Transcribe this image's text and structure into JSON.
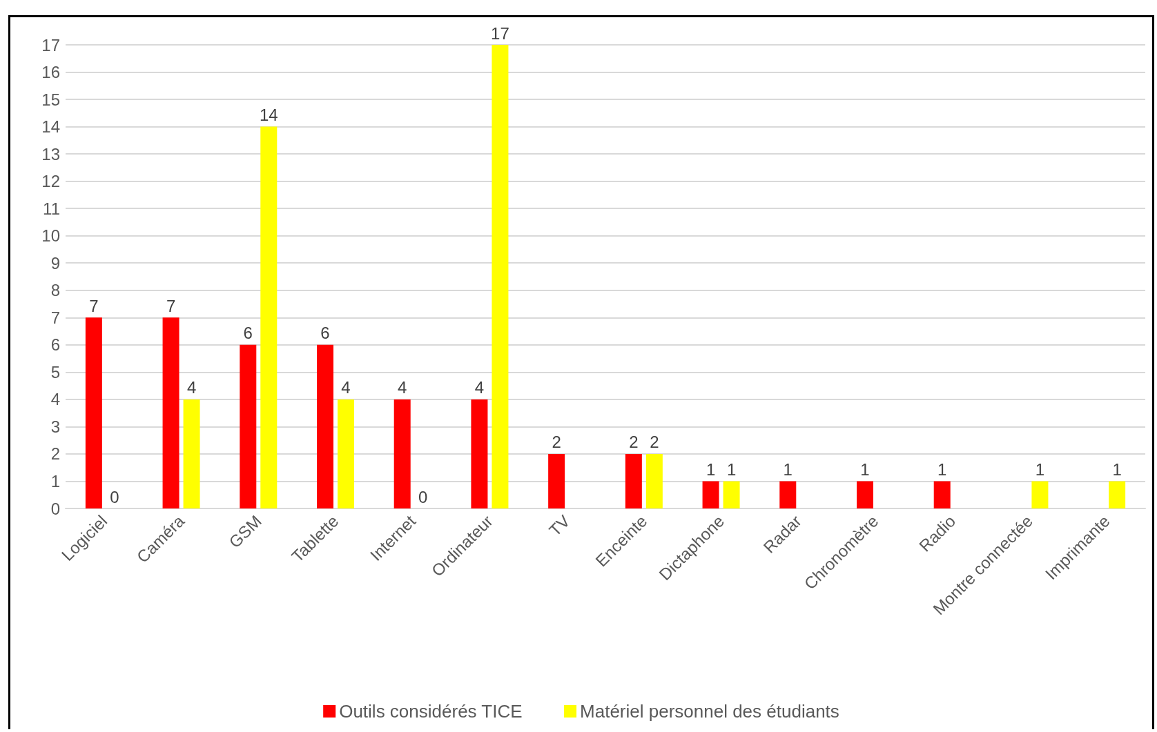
{
  "chart_data": {
    "type": "bar",
    "categories": [
      "Logiciel",
      "Caméra",
      "GSM",
      "Tablette",
      "Internet",
      "Ordinateur",
      "TV",
      "Enceinte",
      "Dictaphone",
      "Radar",
      "Chronomètre",
      "Radio",
      "Montre connectée",
      "Imprimante"
    ],
    "series": [
      {
        "name": "Outils considérés TICE",
        "color": "#ff0000",
        "values": [
          7,
          7,
          6,
          6,
          4,
          4,
          2,
          2,
          1,
          1,
          1,
          1,
          null,
          null
        ]
      },
      {
        "name": "Matériel personnel des étudiants",
        "color": "#ffff00",
        "values": [
          0,
          4,
          14,
          4,
          0,
          17,
          null,
          2,
          1,
          null,
          null,
          null,
          1,
          1
        ]
      }
    ],
    "ylim": [
      0,
      17
    ],
    "yticks": [
      0,
      1,
      2,
      3,
      4,
      5,
      6,
      7,
      8,
      9,
      10,
      11,
      12,
      13,
      14,
      15,
      16,
      17
    ],
    "grid": "y",
    "legend": "bottom",
    "data_labels": true
  }
}
